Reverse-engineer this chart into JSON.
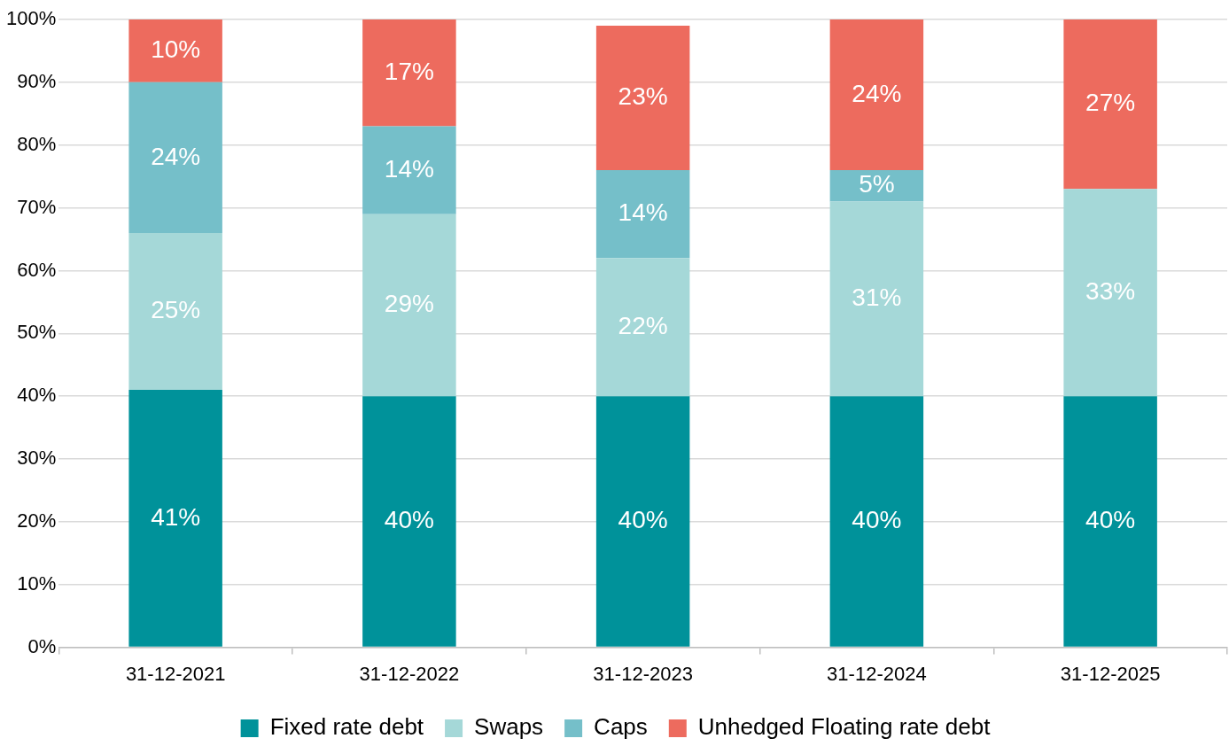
{
  "chart_data": {
    "type": "bar",
    "stacked": true,
    "categories": [
      "31-12-2021",
      "31-12-2022",
      "31-12-2023",
      "31-12-2024",
      "31-12-2025"
    ],
    "series": [
      {
        "name": "Fixed rate debt",
        "color": "#00929a",
        "values": [
          41,
          40,
          40,
          40,
          40
        ],
        "value_labels": [
          "41%",
          "40%",
          "40%",
          "40%",
          "40%"
        ]
      },
      {
        "name": "Swaps",
        "color": "#a5d8d8",
        "values": [
          25,
          29,
          22,
          31,
          33
        ],
        "value_labels": [
          "25%",
          "29%",
          "22%",
          "31%",
          "33%"
        ]
      },
      {
        "name": "Caps",
        "color": "#75bfc9",
        "values": [
          24,
          14,
          14,
          5,
          null
        ],
        "value_labels": [
          "24%",
          "14%",
          "14%",
          "5%",
          null
        ]
      },
      {
        "name": "Unhedged Floating rate debt",
        "color": "#ed6b5e",
        "values": [
          10,
          17,
          23,
          24,
          27
        ],
        "value_labels": [
          "10%",
          "17%",
          "23%",
          "24%",
          "27%"
        ]
      }
    ],
    "ylim": [
      0,
      100
    ],
    "yticks": [
      {
        "value": 0,
        "label": "0%"
      },
      {
        "value": 10,
        "label": "10%"
      },
      {
        "value": 20,
        "label": "20%"
      },
      {
        "value": 30,
        "label": "30%"
      },
      {
        "value": 40,
        "label": "40%"
      },
      {
        "value": 50,
        "label": "50%"
      },
      {
        "value": 60,
        "label": "60%"
      },
      {
        "value": 70,
        "label": "70%"
      },
      {
        "value": 80,
        "label": "80%"
      },
      {
        "value": 90,
        "label": "90%"
      },
      {
        "value": 100,
        "label": "100%"
      }
    ],
    "grid": "y",
    "legend": "bottom"
  }
}
